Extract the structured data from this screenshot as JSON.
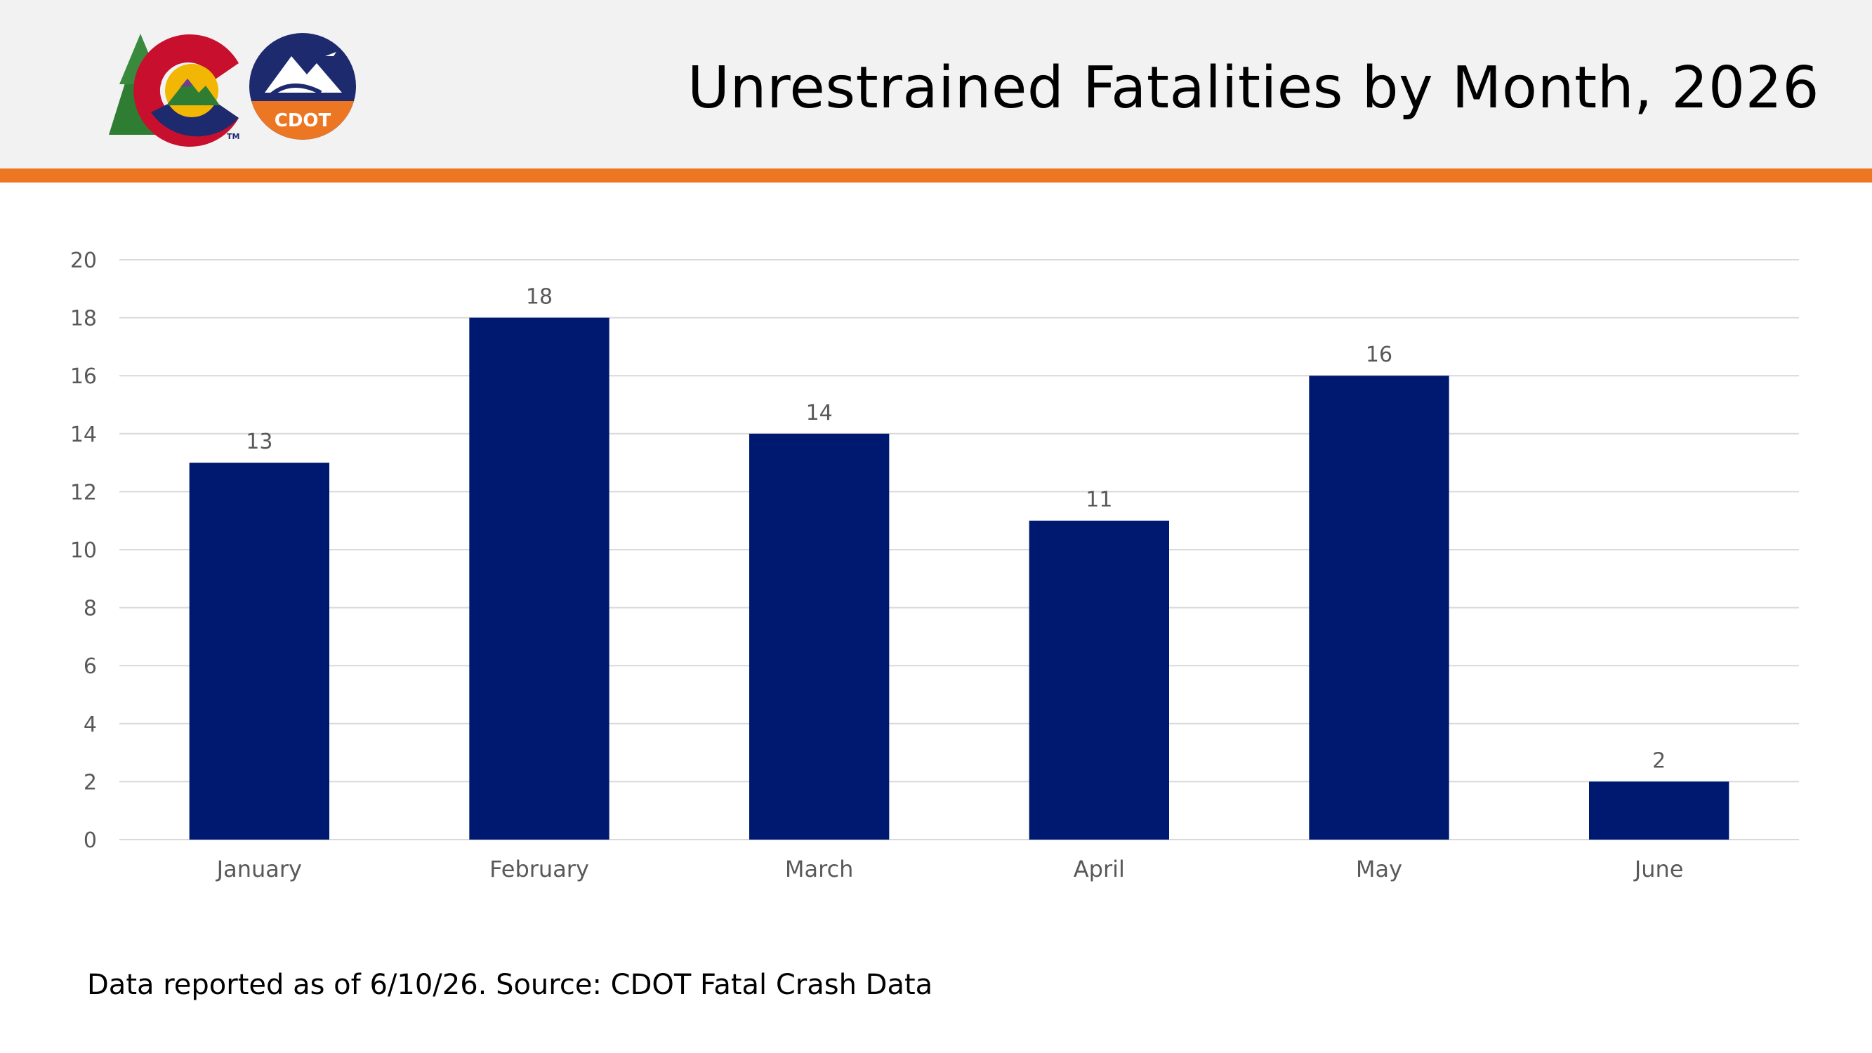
{
  "header": {
    "title": "Unrestrained Fatalities by Month, 2026"
  },
  "logos": {
    "state_logo_mark": "TM",
    "cdot_logo_text": "CDOT"
  },
  "colors": {
    "accent": "#ed7623",
    "bar": "#001970",
    "header_bg": "#f2f2f2",
    "grid": "#d9d9d9",
    "axis_text": "#595959",
    "logo_green": "#2e7d32",
    "logo_red": "#c8102e",
    "logo_navy": "#1e2a6e",
    "logo_gold": "#f2b705"
  },
  "chart_data": {
    "type": "bar",
    "title": "Unrestrained Fatalities by Month, 2026",
    "categories": [
      "January",
      "February",
      "March",
      "April",
      "May",
      "June"
    ],
    "values": [
      13,
      18,
      14,
      11,
      16,
      2
    ],
    "ylim": [
      0,
      20
    ],
    "yticks": [
      0,
      2,
      4,
      6,
      8,
      10,
      12,
      14,
      16,
      18,
      20
    ],
    "xlabel": "",
    "ylabel": "",
    "grid": true,
    "data_labels": true,
    "legend": "none"
  },
  "footnote": {
    "text": "Data reported as of 6/10/26. Source: CDOT Fatal Crash Data"
  }
}
